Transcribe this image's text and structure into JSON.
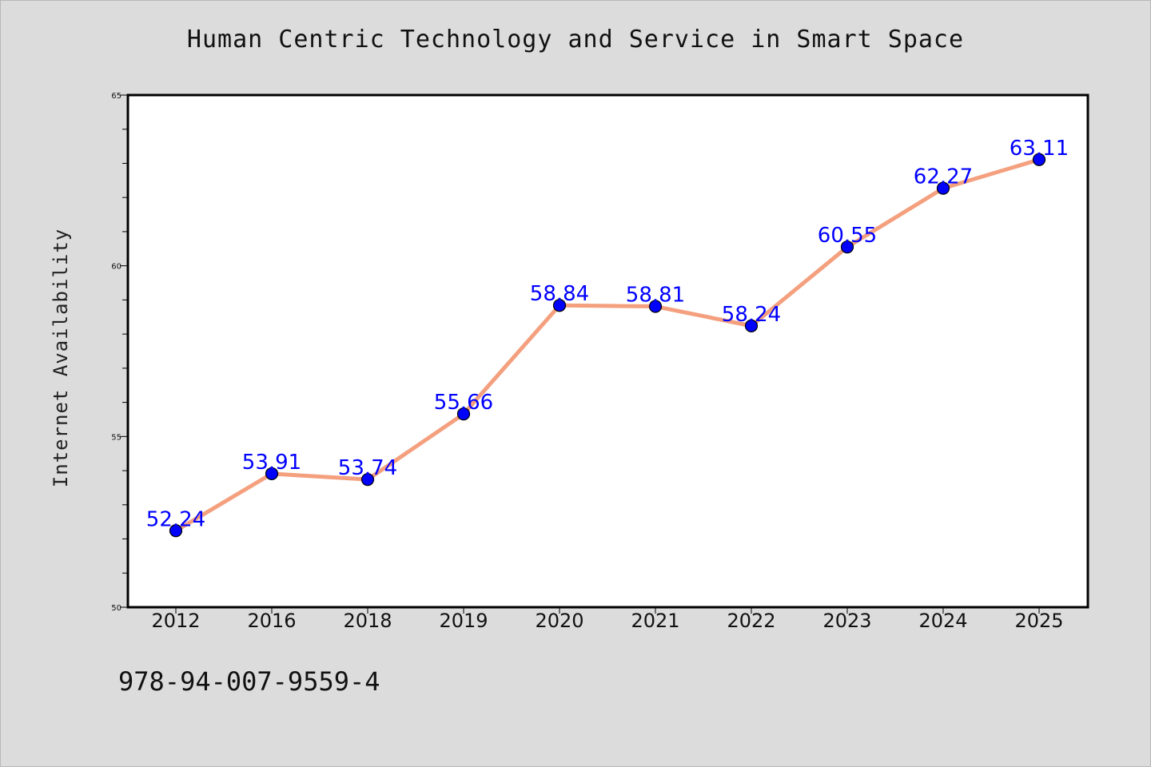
{
  "title": "Human Centric Technology and Service in Smart Space",
  "footer": "978-94-007-9559-4",
  "colors": {
    "background": "#dcdcdc",
    "plot_background": "#ffffff",
    "line": "#f4a07e",
    "marker": "#0000ff",
    "label": "#0000ff"
  },
  "chart_data": {
    "type": "line",
    "title": "Human Centric Technology and Service in Smart Space",
    "xlabel": "",
    "ylabel": "Internet Availability",
    "categories": [
      "2012",
      "2016",
      "2018",
      "2019",
      "2020",
      "2021",
      "2022",
      "2023",
      "2024",
      "2025"
    ],
    "series": [
      {
        "values": [
          52.24,
          53.91,
          53.74,
          55.66,
          58.84,
          58.81,
          58.24,
          60.55,
          62.27,
          63.11
        ],
        "labels": [
          "52.24",
          "53.91",
          "53.74",
          "55.66",
          "58.84",
          "58.81",
          "58.24",
          "60.55",
          "62.27",
          "63.11"
        ]
      }
    ],
    "ylim": [
      50,
      65
    ],
    "yticks": [
      50,
      55,
      60,
      65
    ],
    "y_minor_step": 1,
    "grid": false,
    "legend": "none"
  }
}
